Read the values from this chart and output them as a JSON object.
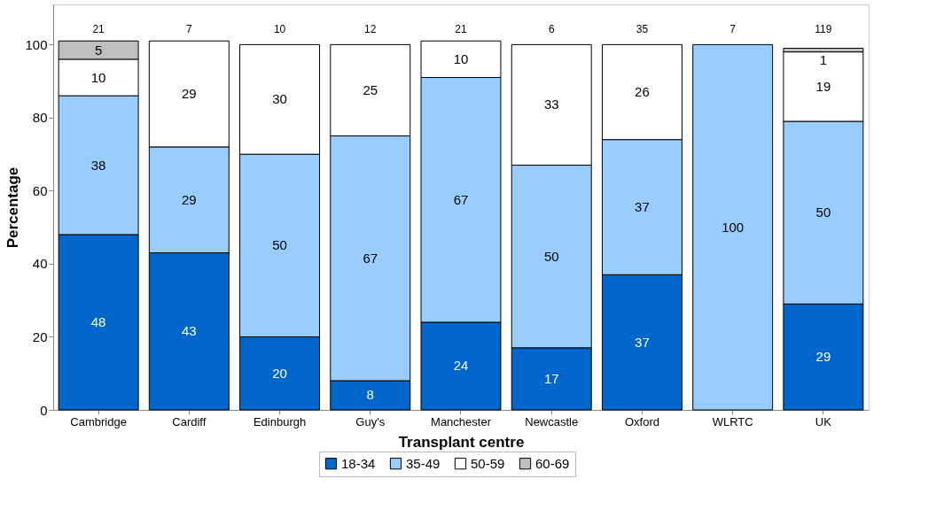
{
  "chart_data": {
    "type": "bar",
    "stacked": true,
    "xlabel": "Transplant centre",
    "ylabel": "Percentage",
    "categories": [
      "Cambridge",
      "Cardiff",
      "Edinburgh",
      "Guy's",
      "Manchester",
      "Newcastle",
      "Oxford",
      "WLRTC",
      "UK"
    ],
    "series": [
      {
        "name": "18-34",
        "color": "#0066cc",
        "values": [
          48,
          43,
          20,
          8,
          24,
          17,
          37,
          null,
          29
        ]
      },
      {
        "name": "35-49",
        "color": "#99ccff",
        "values": [
          38,
          29,
          50,
          67,
          67,
          50,
          37,
          100,
          50
        ]
      },
      {
        "name": "50-59",
        "color": "#ffffff",
        "values": [
          10,
          29,
          30,
          25,
          10,
          33,
          26,
          null,
          19
        ]
      },
      {
        "name": "60-69",
        "color": "#bfbfbf",
        "values": [
          5,
          null,
          null,
          null,
          null,
          null,
          null,
          null,
          1
        ]
      }
    ],
    "annotations": [
      "21",
      "7",
      "10",
      "12",
      "21",
      "6",
      "35",
      "7",
      "119"
    ],
    "ylim": [
      0,
      111
    ],
    "yticks": [
      0,
      20,
      40,
      60,
      80,
      100
    ],
    "data_labels": true,
    "grid": false,
    "legend": "bottom"
  }
}
